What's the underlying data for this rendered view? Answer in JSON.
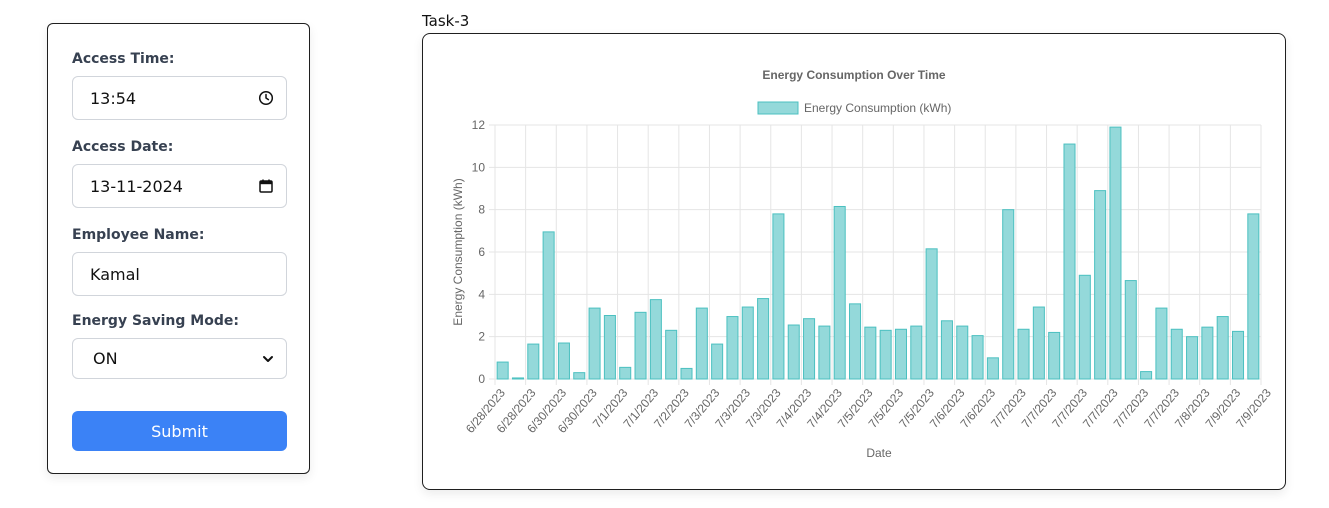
{
  "form": {
    "access_time_label": "Access Time:",
    "access_time_value": "13:54",
    "access_date_label": "Access Date:",
    "access_date_value": "13-11-2024",
    "employee_name_label": "Employee Name:",
    "employee_name_value": "Kamal",
    "energy_mode_label": "Energy Saving Mode:",
    "energy_mode_value": "ON",
    "submit_label": "Submit",
    "submit_color": "#3b82f6"
  },
  "section_title": "Task-3",
  "chart_data": {
    "type": "bar",
    "title": "Energy Consumption Over Time",
    "xlabel": "Date",
    "ylabel": "Energy Consumption (kWh)",
    "ylim": [
      0,
      12
    ],
    "yticks": [
      0,
      2,
      4,
      6,
      8,
      10,
      12
    ],
    "grid": true,
    "legend_position": "top-center",
    "bar_fill": "#94d9da",
    "bar_stroke": "#4bc0c0",
    "series": [
      {
        "name": "Energy Consumption (kWh)",
        "values": [
          0.8,
          0.05,
          1.65,
          6.95,
          1.7,
          0.3,
          3.35,
          3.0,
          0.55,
          3.15,
          3.75,
          2.3,
          0.5,
          3.35,
          1.65,
          2.95,
          3.4,
          3.8,
          7.8,
          2.55,
          2.85,
          2.5,
          8.15,
          3.55,
          2.45,
          2.3,
          2.35,
          2.5,
          6.15,
          2.75,
          2.5,
          2.05,
          1.0,
          8.0,
          2.35,
          3.4,
          2.2,
          11.1,
          4.9,
          8.9,
          11.9,
          4.65,
          0.35,
          3.35,
          2.35,
          2.0,
          2.45,
          2.95,
          2.25,
          7.8
        ]
      }
    ],
    "categories": [
      "6/28/2023",
      "6/28/2023",
      "6/28/2023",
      "6/28/2023",
      "6/30/2023",
      "6/30/2023",
      "6/30/2023",
      "6/30/2023",
      "7/1/2023",
      "7/1/2023",
      "7/1/2023",
      "7/1/2023",
      "7/2/2023",
      "7/2/2023",
      "7/3/2023",
      "7/3/2023",
      "7/3/2023",
      "7/3/2023",
      "7/3/2023",
      "7/3/2023",
      "7/4/2023",
      "7/4/2023",
      "7/4/2023",
      "7/4/2023",
      "7/5/2023",
      "7/5/2023",
      "7/5/2023",
      "7/5/2023",
      "7/5/2023",
      "7/5/2023",
      "7/6/2023",
      "7/6/2023",
      "7/6/2023",
      "7/6/2023",
      "7/7/2023",
      "7/7/2023",
      "7/7/2023",
      "7/7/2023",
      "7/7/2023",
      "7/7/2023",
      "7/7/2023",
      "7/7/2023",
      "7/7/2023",
      "7/7/2023",
      "7/8/2023",
      "7/8/2023",
      "7/9/2023",
      "7/9/2023",
      "7/9/2023",
      "7/9/2023"
    ],
    "tick_labels": [
      "6/28/2023",
      "6/28/2023",
      "6/30/2023",
      "6/30/2023",
      "7/1/2023",
      "7/1/2023",
      "7/2/2023",
      "7/3/2023",
      "7/3/2023",
      "7/3/2023",
      "7/4/2023",
      "7/4/2023",
      "7/5/2023",
      "7/5/2023",
      "7/5/2023",
      "7/6/2023",
      "7/6/2023",
      "7/7/2023",
      "7/7/2023",
      "7/7/2023",
      "7/7/2023",
      "7/7/2023",
      "7/7/2023",
      "7/8/2023",
      "7/9/2023",
      "7/9/2023"
    ]
  }
}
